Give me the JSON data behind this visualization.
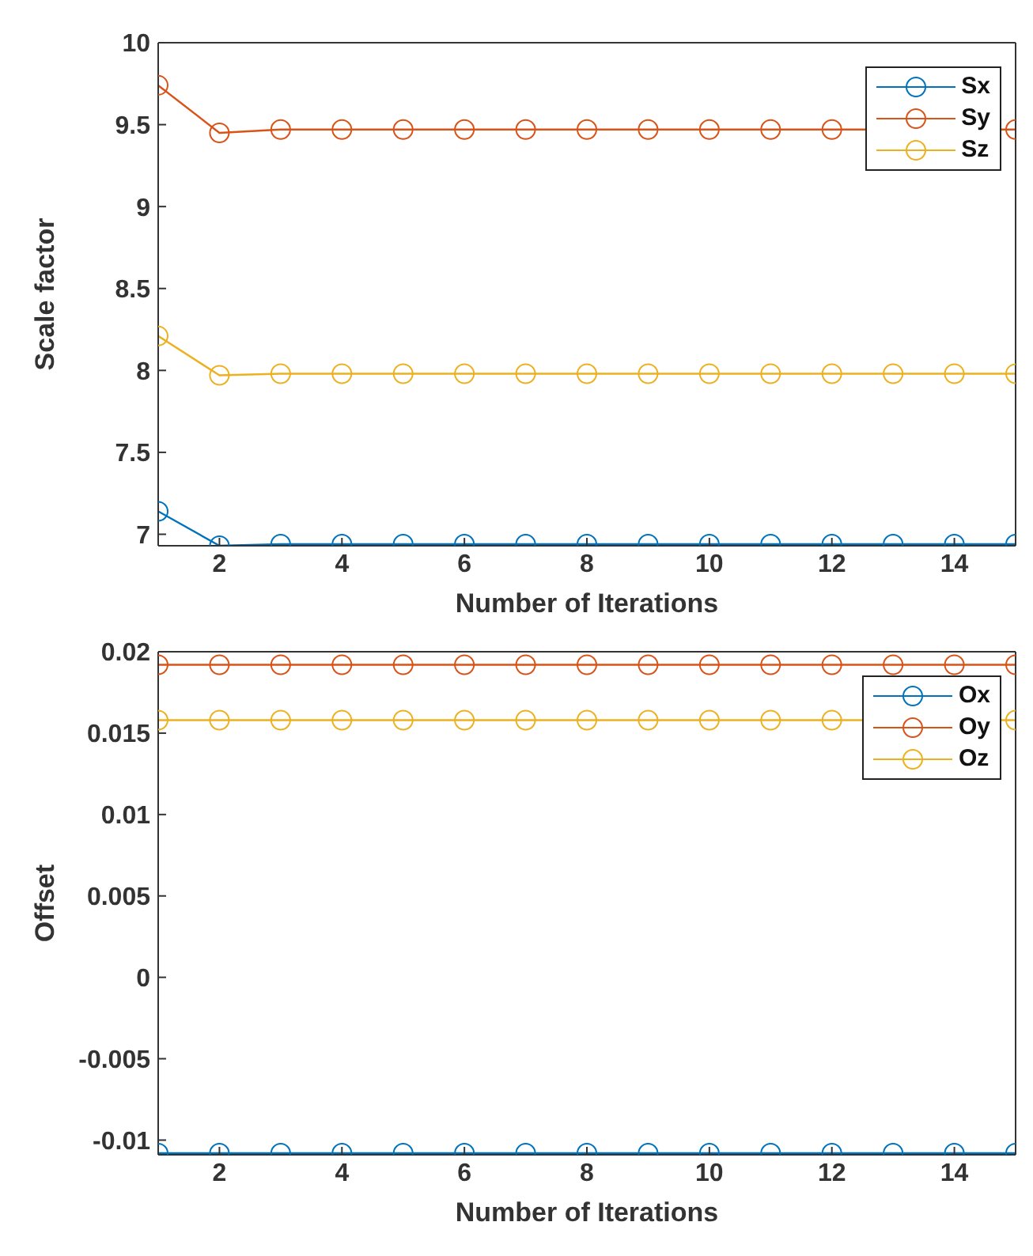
{
  "chart_data": [
    {
      "type": "line",
      "xlabel": "Number of Iterations",
      "ylabel": "Scale factor",
      "x": [
        1,
        2,
        3,
        4,
        5,
        6,
        7,
        8,
        9,
        10,
        11,
        12,
        13,
        14,
        15
      ],
      "series": [
        {
          "name": "Sx",
          "color": "#0072bd",
          "values": [
            7.14,
            6.93,
            6.94,
            6.94,
            6.94,
            6.94,
            6.94,
            6.94,
            6.94,
            6.94,
            6.94,
            6.94,
            6.94,
            6.94,
            6.94
          ]
        },
        {
          "name": "Sy",
          "color": "#d95319",
          "values": [
            9.74,
            9.45,
            9.47,
            9.47,
            9.47,
            9.47,
            9.47,
            9.47,
            9.47,
            9.47,
            9.47,
            9.47,
            null,
            null,
            9.47
          ]
        },
        {
          "name": "Sz",
          "color": "#edb120",
          "values": [
            8.21,
            7.97,
            7.98,
            7.98,
            7.98,
            7.98,
            7.98,
            7.98,
            7.98,
            7.98,
            7.98,
            7.98,
            7.98,
            7.98,
            7.98
          ]
        }
      ],
      "xlim": [
        1,
        15
      ],
      "xticks": [
        2,
        4,
        6,
        8,
        10,
        12,
        14
      ],
      "ylim": [
        6.93,
        10
      ],
      "yticks": [
        7,
        7.5,
        8,
        8.5,
        9,
        9.5,
        10
      ],
      "marker": "circle",
      "legend": "top right",
      "grid": false
    },
    {
      "type": "line",
      "xlabel": "Number of Iterations",
      "ylabel": "Offset",
      "x": [
        1,
        2,
        3,
        4,
        5,
        6,
        7,
        8,
        9,
        10,
        11,
        12,
        13,
        14,
        15
      ],
      "series": [
        {
          "name": "Ox",
          "color": "#0072bd",
          "values": [
            -0.0108,
            -0.0108,
            -0.0108,
            -0.0108,
            -0.0108,
            -0.0108,
            -0.0108,
            -0.0108,
            -0.0108,
            -0.0108,
            -0.0108,
            -0.0108,
            -0.0108,
            -0.0108,
            -0.0108
          ]
        },
        {
          "name": "Oy",
          "color": "#d95319",
          "values": [
            0.0192,
            0.0192,
            0.0192,
            0.0192,
            0.0192,
            0.0192,
            0.0192,
            0.0192,
            0.0192,
            0.0192,
            0.0192,
            0.0192,
            0.0192,
            0.0192,
            0.0192
          ]
        },
        {
          "name": "Oz",
          "color": "#edb120",
          "values": [
            0.0158,
            0.0158,
            0.0158,
            0.0158,
            0.0158,
            0.0158,
            0.0158,
            0.0158,
            0.0158,
            0.0158,
            0.0158,
            0.0158,
            null,
            null,
            0.0158
          ]
        }
      ],
      "xlim": [
        1,
        15
      ],
      "xticks": [
        2,
        4,
        6,
        8,
        10,
        12,
        14
      ],
      "ylim": [
        -0.0109,
        0.02
      ],
      "yticks": [
        -0.01,
        -0.005,
        0,
        0.005,
        0.01,
        0.015,
        0.02
      ],
      "marker": "circle",
      "legend": "top right",
      "grid": false
    }
  ]
}
